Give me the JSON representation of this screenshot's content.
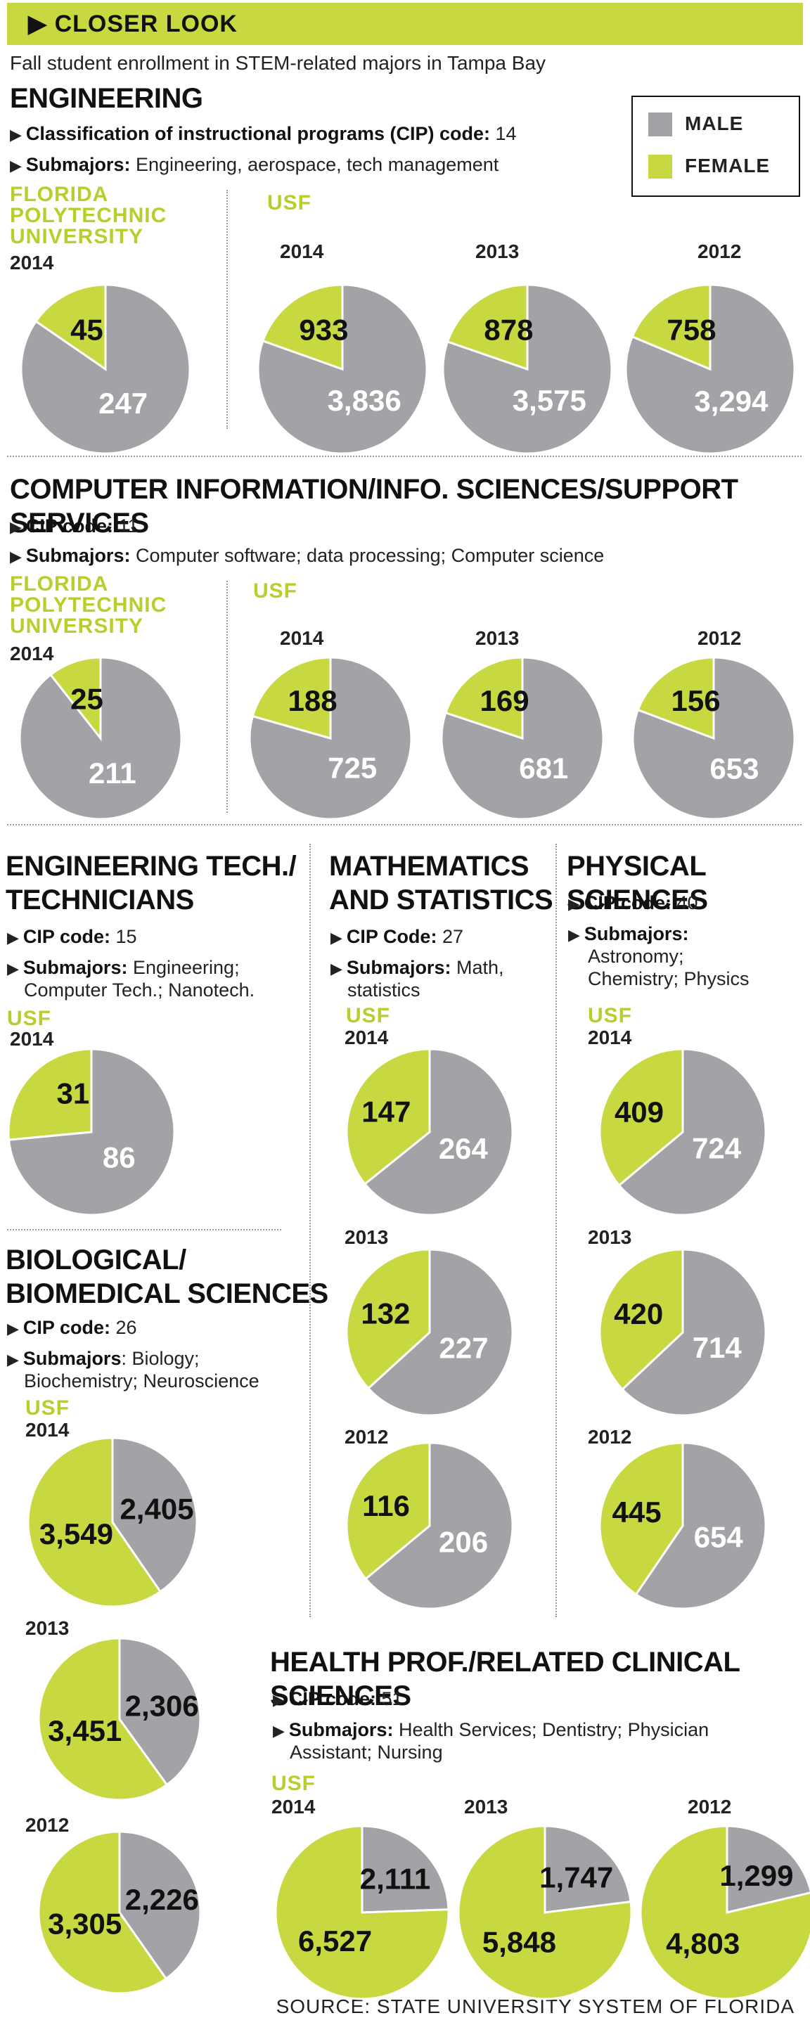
{
  "header": {
    "banner": "CLOSER LOOK",
    "subtitle": "Fall student enrollment in STEM-related majors in Tampa Bay"
  },
  "legend": {
    "male": "MALE",
    "female": "FEMALE",
    "male_color": "#a3a3a7",
    "female_color": "#c7d840"
  },
  "sections": {
    "engineering": {
      "title": "ENGINEERING",
      "cip_label": "Classification of instructional programs (CIP) code:",
      "cip_value": " 14",
      "sub_label": "Submajors:",
      "sub_value": " Engineering, aerospace, tech management",
      "fpu_label": "FLORIDA POLYTECHNIC UNIVERSITY",
      "usf_label": "USF"
    },
    "computer": {
      "title": "COMPUTER INFORMATION/INFO. SCIENCES/SUPPORT SERVICES",
      "cip_label": "CIP code:",
      "cip_value": " 11",
      "sub_label": "Submajors:",
      "sub_value": " Computer software; data processing; Computer science",
      "fpu_label": "FLORIDA POLYTECHNIC UNIVERSITY",
      "usf_label": "USF"
    },
    "engtech": {
      "title_line1": "ENGINEERING TECH./",
      "title_line2": "TECHNICIANS",
      "cip_label": "CIP code:",
      "cip_value": " 15",
      "sub_label": "Submajors:",
      "sub_value_line1": " Engineering;",
      "sub_value_line2": "Computer Tech.; Nanotech.",
      "usf_label": "USF"
    },
    "math": {
      "title_line1": "MATHEMATICS",
      "title_line2": "AND STATISTICS",
      "cip_label": "CIP Code:",
      "cip_value": " 27",
      "sub_label": "Submajors:",
      "sub_value_line1": " Math,",
      "sub_value_line2": "statistics",
      "usf_label": "USF"
    },
    "physical": {
      "title": "PHYSICAL SCIENCES",
      "cip_label": "CIP code:",
      "cip_value": " 40",
      "sub_label": "Submajors:",
      "sub_value_line1": "Astronomy;",
      "sub_value_line2": "Chemistry; Physics",
      "usf_label": "USF"
    },
    "bio": {
      "title_line1": "BIOLOGICAL/",
      "title_line2": "BIOMEDICAL SCIENCES",
      "cip_label": "CIP code:",
      "cip_value": " 26",
      "sub_label": "Submajors",
      "sub_value_line1": ": Biology;",
      "sub_value_line2": "Biochemistry; Neuroscience",
      "usf_label": "USF"
    },
    "health": {
      "title": "HEALTH PROF./RELATED CLINICAL SCIENCES",
      "cip_label": "CIP code:",
      "cip_value": " 51",
      "sub_label": "Submajors:",
      "sub_value_line1": " Health Services; Dentistry; Physician",
      "sub_value_line2": "Assistant; Nursing",
      "usf_label": "USF"
    }
  },
  "source": "SOURCE: STATE UNIVERSITY SYSTEM OF FLORIDA",
  "chart_data": [
    {
      "type": "pie",
      "id": "eng-fpu-2014",
      "year": "2014",
      "female": 45,
      "male": 247,
      "female_label": "45",
      "male_label": "247"
    },
    {
      "type": "pie",
      "id": "eng-usf-2014",
      "year": "2014",
      "female": 933,
      "male": 3836,
      "female_label": "933",
      "male_label": "3,836"
    },
    {
      "type": "pie",
      "id": "eng-usf-2013",
      "year": "2013",
      "female": 878,
      "male": 3575,
      "female_label": "878",
      "male_label": "3,575"
    },
    {
      "type": "pie",
      "id": "eng-usf-2012",
      "year": "2012",
      "female": 758,
      "male": 3294,
      "female_label": "758",
      "male_label": "3,294"
    },
    {
      "type": "pie",
      "id": "cs-fpu-2014",
      "year": "2014",
      "female": 25,
      "male": 211,
      "female_label": "25",
      "male_label": "211"
    },
    {
      "type": "pie",
      "id": "cs-usf-2014",
      "year": "2014",
      "female": 188,
      "male": 725,
      "female_label": "188",
      "male_label": "725"
    },
    {
      "type": "pie",
      "id": "cs-usf-2013",
      "year": "2013",
      "female": 169,
      "male": 681,
      "female_label": "169",
      "male_label": "681"
    },
    {
      "type": "pie",
      "id": "cs-usf-2012",
      "year": "2012",
      "female": 156,
      "male": 653,
      "female_label": "156",
      "male_label": "653"
    },
    {
      "type": "pie",
      "id": "et-usf-2014",
      "year": "2014",
      "female": 31,
      "male": 86,
      "female_label": "31",
      "male_label": "86"
    },
    {
      "type": "pie",
      "id": "math-usf-2014",
      "year": "2014",
      "female": 147,
      "male": 264,
      "female_label": "147",
      "male_label": "264"
    },
    {
      "type": "pie",
      "id": "math-usf-2013",
      "year": "2013",
      "female": 132,
      "male": 227,
      "female_label": "132",
      "male_label": "227"
    },
    {
      "type": "pie",
      "id": "math-usf-2012",
      "year": "2012",
      "female": 116,
      "male": 206,
      "female_label": "116",
      "male_label": "206"
    },
    {
      "type": "pie",
      "id": "phys-usf-2014",
      "year": "2014",
      "female": 409,
      "male": 724,
      "female_label": "409",
      "male_label": "724"
    },
    {
      "type": "pie",
      "id": "phys-usf-2013",
      "year": "2013",
      "female": 420,
      "male": 714,
      "female_label": "420",
      "male_label": "714"
    },
    {
      "type": "pie",
      "id": "phys-usf-2012",
      "year": "2012",
      "female": 445,
      "male": 654,
      "female_label": "445",
      "male_label": "654"
    },
    {
      "type": "pie",
      "id": "bio-usf-2014",
      "year": "2014",
      "female": 3549,
      "male": 2405,
      "female_label": "3,549",
      "male_label": "2,405"
    },
    {
      "type": "pie",
      "id": "bio-usf-2013",
      "year": "2013",
      "female": 3451,
      "male": 2306,
      "female_label": "3,451",
      "male_label": "2,306"
    },
    {
      "type": "pie",
      "id": "bio-usf-2012",
      "year": "2012",
      "female": 3305,
      "male": 2226,
      "female_label": "3,305",
      "male_label": "2,226"
    },
    {
      "type": "pie",
      "id": "hp-usf-2014",
      "year": "2014",
      "female": 6527,
      "male": 2111,
      "female_label": "6,527",
      "male_label": "2,111"
    },
    {
      "type": "pie",
      "id": "hp-usf-2013",
      "year": "2013",
      "female": 5848,
      "male": 1747,
      "female_label": "5,848",
      "male_label": "1,747"
    },
    {
      "type": "pie",
      "id": "hp-usf-2012",
      "year": "2012",
      "female": 4803,
      "male": 1299,
      "female_label": "4,803",
      "male_label": "1,299"
    }
  ]
}
